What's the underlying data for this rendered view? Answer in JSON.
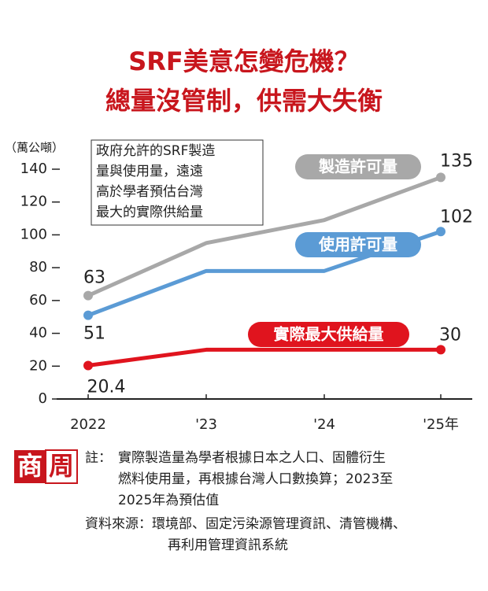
{
  "chart_data": {
    "type": "line",
    "title": [
      "SRF美意怎變危機？",
      "總量沒管制，供需大失衡"
    ],
    "y_axis_label": "（萬公噸）",
    "annotation": [
      "政府允許的SRF製造",
      "量與使用量，遠遠",
      "高於學者預估台灣",
      "最大的實際供給量"
    ],
    "categories": [
      "2022",
      "'23",
      "'24",
      "'25年"
    ],
    "series": [
      {
        "name": "製造許可量",
        "color": "#a8a8a8",
        "values": [
          63,
          95,
          109,
          135
        ]
      },
      {
        "name": "使用許可量",
        "color": "#5b9bd5",
        "values": [
          51,
          78,
          78,
          102
        ]
      },
      {
        "name": "實際最大供給量",
        "color": "#e0141e",
        "values": [
          20.4,
          30,
          30,
          30
        ]
      }
    ],
    "ylim": [
      0,
      140
    ],
    "yticks": [
      0,
      20,
      40,
      60,
      80,
      100,
      120,
      140
    ],
    "logo": [
      "商",
      "周"
    ],
    "note": {
      "label": "註：",
      "lines": [
        "實際製造量為學者根據日本之人口、固體衍生",
        "燃料使用量，再根據台灣人口數換算；2023至",
        "2025年為預估值"
      ]
    },
    "source": {
      "label": "資料來源：",
      "lines": [
        "環境部、固定污染源管理資訊、清管機構、",
        "再利用管理資訊系統"
      ]
    }
  }
}
